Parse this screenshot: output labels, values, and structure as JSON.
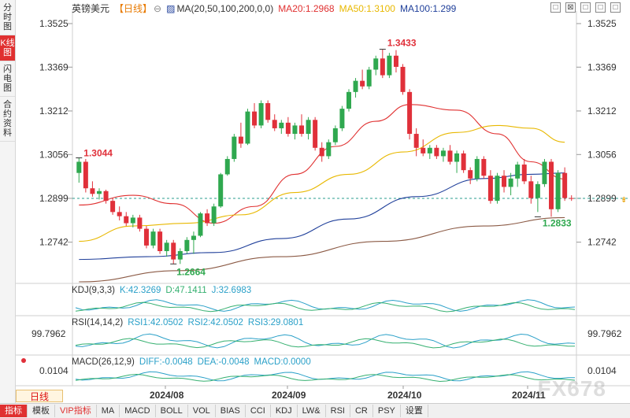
{
  "side_tabs": [
    {
      "label": "分时图",
      "active": false
    },
    {
      "label": "K线图",
      "active": true
    },
    {
      "label": "闪电图",
      "active": false
    },
    {
      "label": "合约资料",
      "active": false
    }
  ],
  "header": {
    "symbol": "英镑美元",
    "period_tag": "【日线】",
    "ma_label": "MA(20,50,100,200,0,0)",
    "ma20": "MA20:1.2968",
    "ma50": "MA50:1.3100",
    "ma100": "MA100:1.299",
    "colors": {
      "ma20": "#e03030",
      "ma50": "#e8b800",
      "ma100": "#1f3f9a",
      "ma200": "#8b5a45"
    }
  },
  "window_controls": [
    "□",
    "⊠",
    "□",
    "□",
    "□"
  ],
  "price_axis": [
    "1.3525",
    "1.3369",
    "1.3212",
    "1.3056",
    "1.2899",
    "1.2742"
  ],
  "current_price": "1.2899",
  "annotations": {
    "high": "1.3433",
    "low": "1.2664",
    "left_high": "1.3044",
    "recent_low": "1.2833"
  },
  "kdj": {
    "label": "KDJ(9,3,3)",
    "k": "K:42.3269",
    "d": "D:47.1411",
    "j": "J:32.6983"
  },
  "rsi": {
    "label": "RSI(14,14,2)",
    "rsi1": "RSI1:42.0502",
    "rsi2": "RSI2:42.0502",
    "rsi3": "RSI3:29.0801",
    "left_value": "99.7962",
    "right_value": "99.7962"
  },
  "macd": {
    "label": "MACD(26,12,9)",
    "diff": "DIFF:-0.0048",
    "dea": "DEA:-0.0048",
    "macd": "MACD:0.0000",
    "left_value": "0.0104",
    "right_value": "0.0104"
  },
  "x_axis": [
    "2024/08",
    "2024/09",
    "2024/10",
    "2024/11"
  ],
  "period_button": "日线",
  "toolbar": [
    "指标",
    "模板",
    "VIP指标",
    "MA",
    "MACD",
    "BOLL",
    "VOL",
    "BIAS",
    "CCI",
    "KDJ",
    "LW&",
    "RSI",
    "CR",
    "PSY",
    "设置"
  ],
  "watermark": "FX678",
  "chart_data": {
    "type": "candlestick",
    "y_range": [
      1.26,
      1.357
    ],
    "candles": [
      [
        1.299,
        1.3044,
        1.2955,
        1.303
      ],
      [
        1.303,
        1.304,
        1.292,
        1.2935
      ],
      [
        1.2935,
        1.296,
        1.2905,
        1.2915
      ],
      [
        1.2915,
        1.2935,
        1.2895,
        1.2925
      ],
      [
        1.2925,
        1.293,
        1.288,
        1.289
      ],
      [
        1.289,
        1.29,
        1.284,
        1.285
      ],
      [
        1.285,
        1.287,
        1.282,
        1.2835
      ],
      [
        1.2835,
        1.285,
        1.28,
        1.281
      ],
      [
        1.281,
        1.284,
        1.2795,
        1.283
      ],
      [
        1.283,
        1.284,
        1.278,
        1.279
      ],
      [
        1.279,
        1.28,
        1.272,
        1.273
      ],
      [
        1.273,
        1.279,
        1.272,
        1.278
      ],
      [
        1.278,
        1.279,
        1.27,
        1.271
      ],
      [
        1.271,
        1.275,
        1.269,
        1.274
      ],
      [
        1.274,
        1.275,
        1.2664,
        1.268
      ],
      [
        1.268,
        1.272,
        1.2664,
        1.271
      ],
      [
        1.271,
        1.276,
        1.27,
        1.275
      ],
      [
        1.275,
        1.278,
        1.27,
        1.2765
      ],
      [
        1.2765,
        1.285,
        1.276,
        1.2845
      ],
      [
        1.2845,
        1.286,
        1.28,
        1.281
      ],
      [
        1.281,
        1.288,
        1.28,
        1.287
      ],
      [
        1.287,
        1.299,
        1.2865,
        1.2985
      ],
      [
        1.2985,
        1.305,
        1.298,
        1.304
      ],
      [
        1.304,
        1.313,
        1.303,
        1.312
      ],
      [
        1.312,
        1.317,
        1.308,
        1.3095
      ],
      [
        1.3095,
        1.322,
        1.309,
        1.321
      ],
      [
        1.321,
        1.324,
        1.315,
        1.316
      ],
      [
        1.316,
        1.325,
        1.315,
        1.324
      ],
      [
        1.324,
        1.325,
        1.317,
        1.318
      ],
      [
        1.318,
        1.32,
        1.314,
        1.315
      ],
      [
        1.315,
        1.318,
        1.313,
        1.317
      ],
      [
        1.317,
        1.319,
        1.312,
        1.313
      ],
      [
        1.313,
        1.317,
        1.311,
        1.316
      ],
      [
        1.316,
        1.32,
        1.312,
        1.313
      ],
      [
        1.313,
        1.319,
        1.311,
        1.318
      ],
      [
        1.318,
        1.319,
        1.307,
        1.308
      ],
      [
        1.308,
        1.31,
        1.303,
        1.305
      ],
      [
        1.305,
        1.311,
        1.304,
        1.31
      ],
      [
        1.31,
        1.316,
        1.309,
        1.315
      ],
      [
        1.315,
        1.323,
        1.314,
        1.322
      ],
      [
        1.322,
        1.329,
        1.321,
        1.328
      ],
      [
        1.328,
        1.333,
        1.326,
        1.332
      ],
      [
        1.332,
        1.336,
        1.329,
        1.33
      ],
      [
        1.33,
        1.337,
        1.329,
        1.336
      ],
      [
        1.336,
        1.341,
        1.334,
        1.34
      ],
      [
        1.34,
        1.3433,
        1.333,
        1.334
      ],
      [
        1.334,
        1.342,
        1.333,
        1.341
      ],
      [
        1.341,
        1.343,
        1.335,
        1.337
      ],
      [
        1.337,
        1.338,
        1.327,
        1.328
      ],
      [
        1.328,
        1.329,
        1.311,
        1.313
      ],
      [
        1.313,
        1.315,
        1.305,
        1.308
      ],
      [
        1.308,
        1.311,
        1.305,
        1.306
      ],
      [
        1.306,
        1.309,
        1.304,
        1.308
      ],
      [
        1.308,
        1.309,
        1.304,
        1.305
      ],
      [
        1.305,
        1.308,
        1.303,
        1.307
      ],
      [
        1.307,
        1.309,
        1.302,
        1.303
      ],
      [
        1.303,
        1.307,
        1.299,
        1.306
      ],
      [
        1.306,
        1.307,
        1.299,
        1.3
      ],
      [
        1.3,
        1.301,
        1.295,
        1.297
      ],
      [
        1.297,
        1.305,
        1.296,
        1.304
      ],
      [
        1.304,
        1.305,
        1.297,
        1.298
      ],
      [
        1.298,
        1.3,
        1.288,
        1.289
      ],
      [
        1.289,
        1.299,
        1.288,
        1.298
      ],
      [
        1.298,
        1.3,
        1.292,
        1.294
      ],
      [
        1.294,
        1.299,
        1.291,
        1.297
      ],
      [
        1.297,
        1.303,
        1.294,
        1.302
      ],
      [
        1.302,
        1.304,
        1.295,
        1.296
      ],
      [
        1.296,
        1.298,
        1.288,
        1.29
      ],
      [
        1.29,
        1.296,
        1.285,
        1.295
      ],
      [
        1.295,
        1.304,
        1.294,
        1.303
      ],
      [
        1.303,
        1.304,
        1.2833,
        1.286
      ],
      [
        1.286,
        1.3,
        1.285,
        1.299
      ],
      [
        1.299,
        1.301,
        1.289,
        1.29
      ],
      [
        1.29,
        1.291,
        1.289,
        1.2899
      ]
    ],
    "ma_series": [
      {
        "name": "MA20",
        "color": "#e03030",
        "points": [
          [
            0,
            1.2875
          ],
          [
            8,
            1.291
          ],
          [
            14,
            1.288
          ],
          [
            20,
            1.281
          ],
          [
            26,
            1.287
          ],
          [
            32,
            1.2985
          ],
          [
            38,
            1.3085
          ],
          [
            44,
            1.3175
          ],
          [
            49,
            1.3235
          ],
          [
            56,
            1.3215
          ],
          [
            62,
            1.313
          ],
          [
            67,
            1.303
          ],
          [
            72,
            1.2968
          ]
        ]
      },
      {
        "name": "MA50",
        "color": "#e8b800",
        "points": [
          [
            0,
            1.2745
          ],
          [
            8,
            1.28
          ],
          [
            16,
            1.281
          ],
          [
            24,
            1.284
          ],
          [
            32,
            1.292
          ],
          [
            40,
            1.2985
          ],
          [
            48,
            1.3065
          ],
          [
            56,
            1.3135
          ],
          [
            62,
            1.316
          ],
          [
            67,
            1.315
          ],
          [
            72,
            1.31
          ]
        ]
      },
      {
        "name": "MA100",
        "color": "#1f3f9a",
        "points": [
          [
            0,
            1.268
          ],
          [
            10,
            1.269
          ],
          [
            20,
            1.2705
          ],
          [
            30,
            1.2755
          ],
          [
            40,
            1.2825
          ],
          [
            50,
            1.2905
          ],
          [
            60,
            1.297
          ],
          [
            67,
            1.2985
          ],
          [
            72,
            1.299
          ]
        ]
      },
      {
        "name": "MA200",
        "color": "#8b5a45",
        "points": [
          [
            0,
            1.26
          ],
          [
            15,
            1.264
          ],
          [
            30,
            1.269
          ],
          [
            45,
            1.2745
          ],
          [
            60,
            1.28
          ],
          [
            72,
            1.283
          ]
        ]
      }
    ]
  }
}
